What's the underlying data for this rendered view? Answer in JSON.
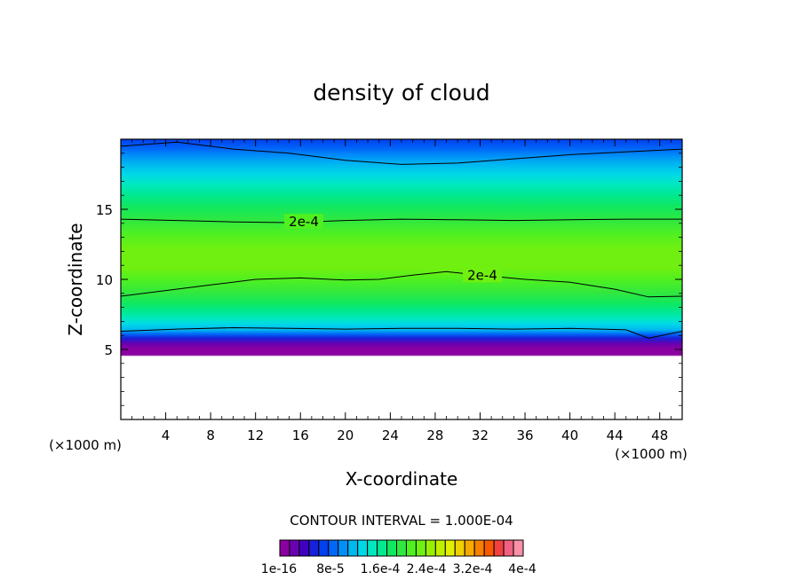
{
  "chart_data": {
    "type": "heatmap",
    "title": "density of cloud",
    "xlabel": "X-coordinate",
    "ylabel": "Z-coordinate",
    "x_unit_left": "(×1000 m)",
    "x_unit_right": "(×1000 m)",
    "xlim": [
      0,
      50
    ],
    "ylim": [
      0,
      20
    ],
    "x_ticks": [
      4,
      8,
      12,
      16,
      20,
      24,
      28,
      32,
      36,
      40,
      44,
      48
    ],
    "x_tick_labels": [
      "4",
      "8",
      "12",
      "16",
      "20",
      "24",
      "28",
      "32",
      "36",
      "40",
      "44",
      "48"
    ],
    "y_ticks": [
      5,
      10,
      15
    ],
    "y_tick_labels": [
      "5",
      "10",
      "15"
    ],
    "contour_interval_text": "CONTOUR INTERVAL = 1.000E-04",
    "contour_labels": [
      {
        "text": "2e-4",
        "x": 16.3,
        "z": 14.1
      },
      {
        "text": "2e-4",
        "x": 32.2,
        "z": 10.3
      }
    ],
    "contour_lines": [
      {
        "name": "upper",
        "points": [
          [
            0,
            19.5
          ],
          [
            5,
            19.8
          ],
          [
            10,
            19.3
          ],
          [
            15,
            19.0
          ],
          [
            20,
            18.5
          ],
          [
            25,
            18.2
          ],
          [
            30,
            18.3
          ],
          [
            35,
            18.6
          ],
          [
            40,
            18.9
          ],
          [
            45,
            19.1
          ],
          [
            50,
            19.3
          ]
        ]
      },
      {
        "name": "2e-4 top",
        "points": [
          [
            0,
            14.3
          ],
          [
            5,
            14.2
          ],
          [
            10,
            14.1
          ],
          [
            15,
            14.05
          ],
          [
            20,
            14.2
          ],
          [
            25,
            14.3
          ],
          [
            30,
            14.25
          ],
          [
            35,
            14.2
          ],
          [
            40,
            14.25
          ],
          [
            45,
            14.3
          ],
          [
            50,
            14.3
          ]
        ]
      },
      {
        "name": "2e-4 bottom",
        "points": [
          [
            0,
            8.8
          ],
          [
            4,
            9.2
          ],
          [
            8,
            9.6
          ],
          [
            12,
            10.0
          ],
          [
            16,
            10.1
          ],
          [
            20,
            9.95
          ],
          [
            23,
            10.0
          ],
          [
            26,
            10.3
          ],
          [
            29,
            10.55
          ],
          [
            32,
            10.3
          ],
          [
            36,
            10.0
          ],
          [
            40,
            9.8
          ],
          [
            44,
            9.3
          ],
          [
            47,
            8.75
          ],
          [
            50,
            8.8
          ]
        ]
      },
      {
        "name": "lower",
        "points": [
          [
            0,
            6.3
          ],
          [
            5,
            6.45
          ],
          [
            10,
            6.55
          ],
          [
            15,
            6.5
          ],
          [
            20,
            6.45
          ],
          [
            25,
            6.5
          ],
          [
            30,
            6.5
          ],
          [
            35,
            6.45
          ],
          [
            40,
            6.5
          ],
          [
            45,
            6.4
          ],
          [
            47,
            5.8
          ],
          [
            50,
            6.3
          ]
        ]
      }
    ],
    "profile": [
      {
        "z": 0.0,
        "level": -1
      },
      {
        "z": 4.5,
        "level": -1
      },
      {
        "z": 4.6,
        "level": 0
      },
      {
        "z": 5.0,
        "level": 0
      },
      {
        "z": 5.4,
        "level": 1
      },
      {
        "z": 5.8,
        "level": 3
      },
      {
        "z": 6.1,
        "level": 5
      },
      {
        "z": 6.4,
        "level": 7
      },
      {
        "z": 6.8,
        "level": 8
      },
      {
        "z": 7.2,
        "level": 9
      },
      {
        "z": 7.7,
        "level": 10
      },
      {
        "z": 8.3,
        "level": 11
      },
      {
        "z": 9.0,
        "level": 12
      },
      {
        "z": 10.0,
        "level": 13
      },
      {
        "z": 10.8,
        "level": 14
      },
      {
        "z": 12.2,
        "level": 14
      },
      {
        "z": 13.2,
        "level": 13
      },
      {
        "z": 14.2,
        "level": 12
      },
      {
        "z": 15.2,
        "level": 11
      },
      {
        "z": 16.0,
        "level": 10
      },
      {
        "z": 16.8,
        "level": 9
      },
      {
        "z": 17.5,
        "level": 8
      },
      {
        "z": 18.2,
        "level": 7
      },
      {
        "z": 18.8,
        "level": 6
      },
      {
        "z": 19.3,
        "level": 5
      },
      {
        "z": 20.0,
        "level": 4
      }
    ],
    "colorbar_colors": [
      "#8b00a0",
      "#6a00b0",
      "#4000c0",
      "#1820d8",
      "#0040f0",
      "#0068f8",
      "#0090f8",
      "#00b8f0",
      "#00d8e8",
      "#00e8c0",
      "#00e890",
      "#10e860",
      "#30e840",
      "#50f020",
      "#70f010",
      "#98f000",
      "#c0f000",
      "#e0f000",
      "#f0d000",
      "#f8a800",
      "#f88000",
      "#f85800",
      "#f04040",
      "#f06080",
      "#f890a8"
    ],
    "colorbar_labels": [
      "1e-16",
      "8e-5",
      "1.6e-4",
      "2.4e-4",
      "3.2e-4",
      "4e-4"
    ]
  }
}
